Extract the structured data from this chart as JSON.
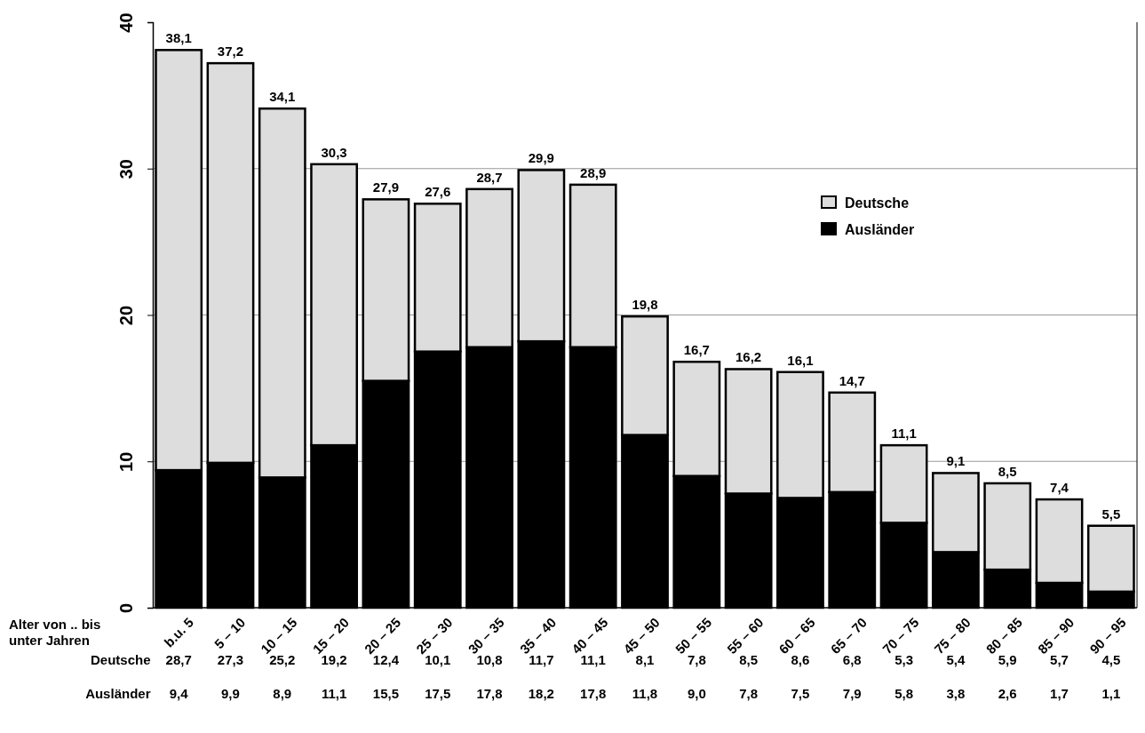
{
  "chart_data": {
    "type": "bar",
    "stacked": true,
    "xlabel": "Alter von .. bis unter Jahren",
    "categories": [
      "b.u. 5",
      "5 – 10",
      "10 – 15",
      "15 – 20",
      "20 – 25",
      "25 – 30",
      "30 – 35",
      "35 – 40",
      "40 – 45",
      "45 – 50",
      "50 – 55",
      "55 – 60",
      "60 – 65",
      "65 – 70",
      "70 – 75",
      "75 – 80",
      "80 – 85",
      "85 – 90",
      "90 – 95"
    ],
    "series": [
      {
        "name": "Ausländer",
        "color": "#000000",
        "values": [
          9.4,
          9.9,
          8.9,
          11.1,
          15.5,
          17.5,
          17.8,
          18.2,
          17.8,
          11.8,
          9.0,
          7.8,
          7.5,
          7.9,
          5.8,
          3.8,
          2.6,
          1.7,
          1.1
        ],
        "value_labels": [
          "9,4",
          "9,9",
          "8,9",
          "11,1",
          "15,5",
          "17,5",
          "17,8",
          "18,2",
          "17,8",
          "11,8",
          "9,0",
          "7,8",
          "7,5",
          "7,9",
          "5,8",
          "3,8",
          "2,6",
          "1,7",
          "1,1"
        ]
      },
      {
        "name": "Deutsche",
        "color": "#dddddd",
        "values": [
          28.7,
          27.3,
          25.2,
          19.2,
          12.4,
          10.1,
          10.8,
          11.7,
          11.1,
          8.1,
          7.8,
          8.5,
          8.6,
          6.8,
          5.3,
          5.4,
          5.9,
          5.7,
          4.5
        ],
        "value_labels": [
          "28,7",
          "27,3",
          "25,2",
          "19,2",
          "12,4",
          "10,1",
          "10,8",
          "11,7",
          "11,1",
          "8,1",
          "7,8",
          "8,5",
          "8,6",
          "6,8",
          "5,3",
          "5,4",
          "5,9",
          "5,7",
          "4,5"
        ]
      }
    ],
    "totals": [
      "38,1",
      "37,2",
      "34,1",
      "30,3",
      "27,9",
      "27,6",
      "28,7",
      "29,9",
      "28,9",
      "19,8",
      "16,7",
      "16,2",
      "16,1",
      "14,7",
      "11,1",
      "9,1",
      "8,5",
      "7,4",
      "5,5"
    ],
    "ylim": [
      0,
      40
    ],
    "yticks": [
      0,
      10,
      20,
      30,
      40
    ],
    "grid": "y",
    "legend": "top right"
  }
}
